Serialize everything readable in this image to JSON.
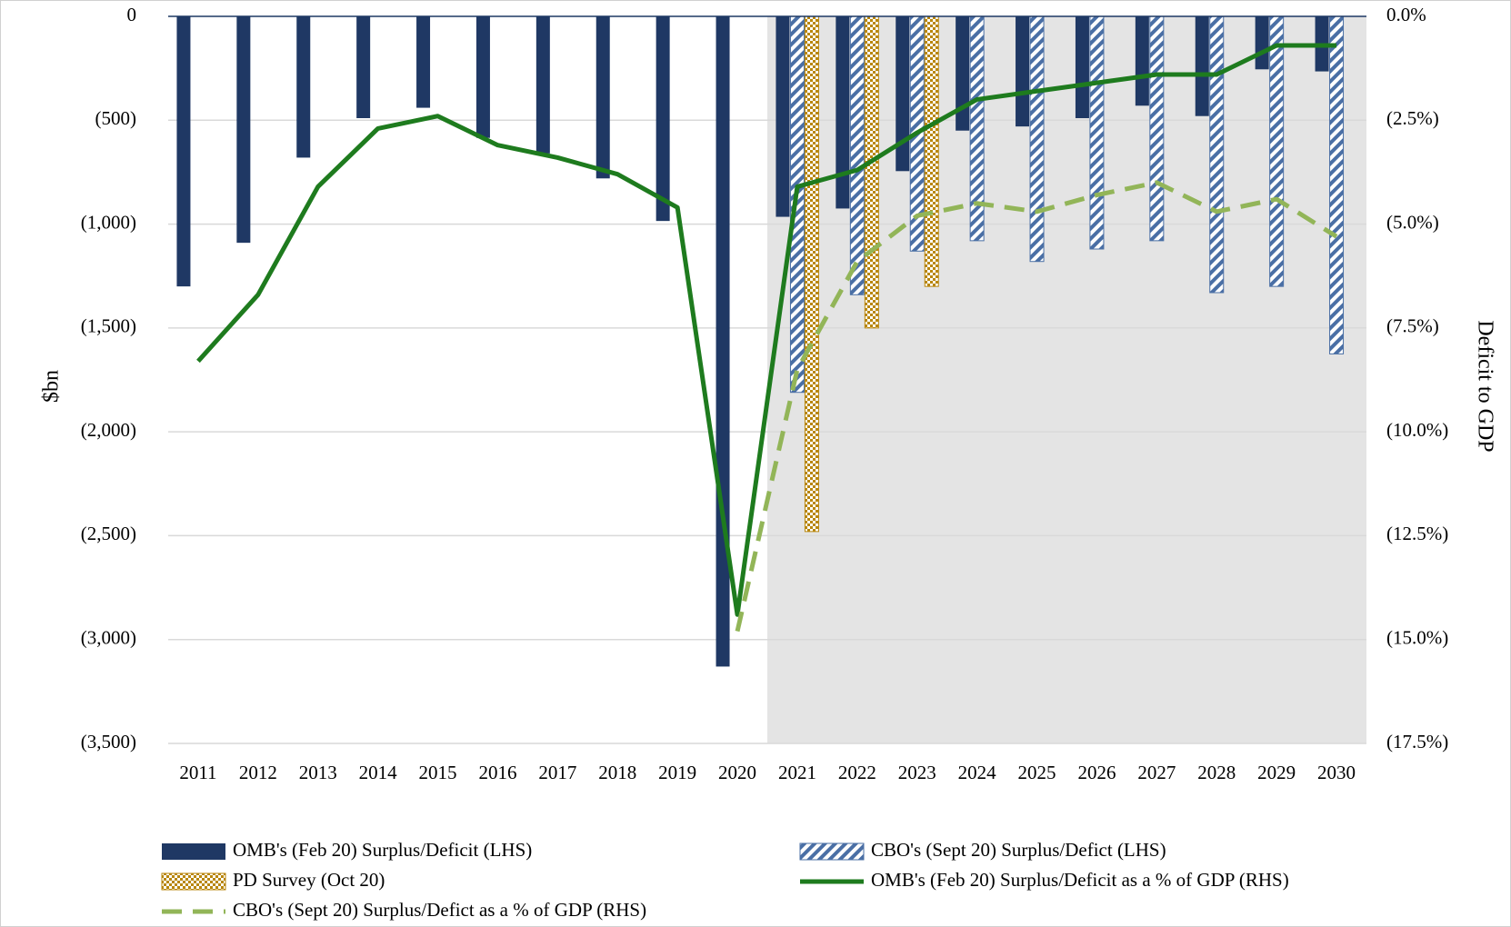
{
  "chart_data": {
    "type": "bar",
    "categories": [
      "2011",
      "2012",
      "2013",
      "2014",
      "2015",
      "2016",
      "2017",
      "2018",
      "2019",
      "2020",
      "2021",
      "2022",
      "2023",
      "2024",
      "2025",
      "2026",
      "2027",
      "2028",
      "2029",
      "2030"
    ],
    "series": [
      {
        "name": "OMB's (Feb 20) Surplus/Deficit (LHS)",
        "type": "bar",
        "color": "#1f3864",
        "pattern": "solid",
        "values": [
          -1300,
          -1090,
          -680,
          -490,
          -440,
          -585,
          -660,
          -780,
          -985,
          -3130,
          -965,
          -925,
          -745,
          -550,
          -530,
          -490,
          -430,
          -480,
          -255,
          -265
        ]
      },
      {
        "name": "CBO's (Sept 20) Surplus/Defict (LHS)",
        "type": "bar",
        "color": "#4a6fa5",
        "pattern": "stripes",
        "values": [
          null,
          null,
          null,
          null,
          null,
          null,
          null,
          null,
          null,
          null,
          -1810,
          -1340,
          -1130,
          -1080,
          -1180,
          -1120,
          -1080,
          -1330,
          -1300,
          -1625
        ]
      },
      {
        "name": "PD Survey (Oct 20)",
        "type": "bar",
        "color": "#b8860b",
        "pattern": "checker",
        "values": [
          null,
          null,
          null,
          null,
          null,
          null,
          null,
          null,
          null,
          null,
          -2480,
          -1500,
          -1300,
          null,
          null,
          null,
          null,
          null,
          null,
          null
        ]
      },
      {
        "name": "OMB's (Feb 20) Surplus/Deficit as a % of GDP (RHS)",
        "type": "line",
        "axis": "y2",
        "color": "#1e7b1e",
        "dash": false,
        "values": [
          -8.3,
          -6.7,
          -4.1,
          -2.7,
          -2.4,
          -3.1,
          -3.4,
          -3.8,
          -4.6,
          -14.4,
          -4.1,
          -3.7,
          -2.8,
          -2.0,
          -1.8,
          -1.6,
          -1.4,
          -1.4,
          -0.7,
          -0.7
        ]
      },
      {
        "name": "CBO's (Sept 20) Surplus/Defict as a % of GDP (RHS)",
        "type": "line",
        "axis": "y2",
        "color": "#92b558",
        "dash": true,
        "values": [
          null,
          null,
          null,
          null,
          null,
          null,
          null,
          null,
          null,
          -14.8,
          -8.5,
          -5.9,
          -4.8,
          -4.5,
          -4.7,
          -4.3,
          -4.0,
          -4.7,
          -4.4,
          -5.3
        ]
      }
    ],
    "y_label": "$bn",
    "y2_label": "Deficit to GDP",
    "ylim": [
      -3500,
      0
    ],
    "yticks": [
      {
        "value": -3500,
        "label": "(3,500)"
      },
      {
        "value": -3000,
        "label": "(3,000)"
      },
      {
        "value": -2500,
        "label": "(2,500)"
      },
      {
        "value": -2000,
        "label": "(2,000)"
      },
      {
        "value": -1500,
        "label": "(1,500)"
      },
      {
        "value": -1000,
        "label": "(1,000)"
      },
      {
        "value": -500,
        "label": "(500)"
      },
      0
    ],
    "y2lim": [
      -17.5,
      0
    ],
    "y2ticks": [
      {
        "value": -17.5,
        "label": "(17.5%)"
      },
      {
        "value": -15,
        "label": "(15.0%)"
      },
      {
        "value": -12.5,
        "label": "(12.5%)"
      },
      {
        "value": -10,
        "label": "(10.0%)"
      },
      {
        "value": -7.5,
        "label": "(7.5%)"
      },
      {
        "value": -5,
        "label": "(5.0%)"
      },
      {
        "value": -2.5,
        "label": "(2.5%)"
      },
      {
        "value": 0,
        "label": "0.0%"
      }
    ],
    "grid": true,
    "negative_tick_color": "#ff0000",
    "shade": {
      "from": "2021",
      "color": "#e4e4e4"
    },
    "legend": "bottom"
  }
}
